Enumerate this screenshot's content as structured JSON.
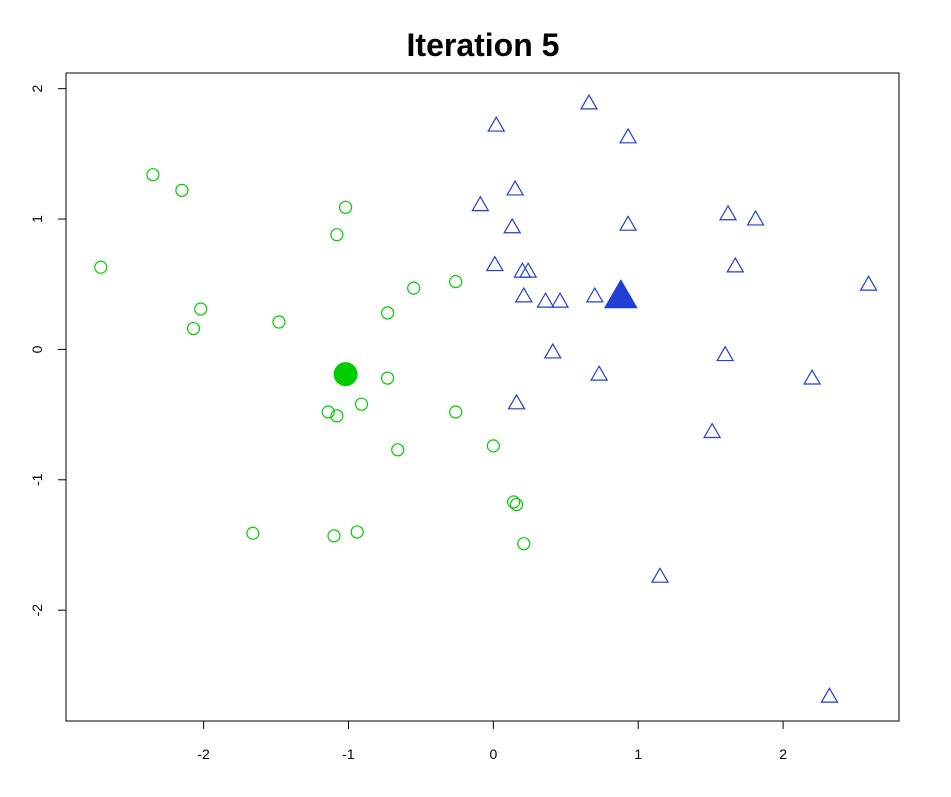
{
  "chart_data": {
    "type": "scatter",
    "title": "Iteration 5",
    "xlabel": "",
    "ylabel": "",
    "xlim": [
      -2.95,
      2.8
    ],
    "ylim": [
      -2.85,
      2.12
    ],
    "x_ticks": [
      -2,
      -1,
      0,
      1,
      2
    ],
    "y_ticks": [
      -2,
      -1,
      0,
      1,
      2
    ],
    "x_tick_labels": [
      "-2",
      "-1",
      "0",
      "1",
      "2"
    ],
    "y_tick_labels": [
      "-2",
      "-1",
      "0",
      "1",
      "2"
    ],
    "grid": false,
    "series": [
      {
        "marker": "circle-open",
        "color": "#00cc00",
        "points": [
          [
            -2.71,
            0.63
          ],
          [
            -2.35,
            1.34
          ],
          [
            -2.15,
            1.22
          ],
          [
            -2.07,
            0.16
          ],
          [
            -2.02,
            0.31
          ],
          [
            -1.48,
            0.21
          ],
          [
            -1.66,
            -1.41
          ],
          [
            -1.14,
            -0.48
          ],
          [
            -1.1,
            -1.43
          ],
          [
            -1.08,
            0.88
          ],
          [
            -1.08,
            -0.51
          ],
          [
            -1.02,
            1.09
          ],
          [
            -0.94,
            -1.4
          ],
          [
            -0.91,
            -0.42
          ],
          [
            -0.73,
            0.28
          ],
          [
            -0.73,
            -0.22
          ],
          [
            -0.66,
            -0.77
          ],
          [
            -0.55,
            0.47
          ],
          [
            -0.26,
            0.52
          ],
          [
            -0.26,
            -0.48
          ],
          [
            0.0,
            -0.74
          ],
          [
            0.14,
            -1.17
          ],
          [
            0.16,
            -1.19
          ],
          [
            0.21,
            -1.49
          ]
        ]
      },
      {
        "marker": "circle-filled",
        "color": "#00cc00",
        "points": [
          [
            -1.02,
            -0.19
          ]
        ]
      },
      {
        "marker": "triangle-open",
        "color": "#1f3fd6",
        "points": [
          [
            0.66,
            1.88
          ],
          [
            0.02,
            1.71
          ],
          [
            0.93,
            1.62
          ],
          [
            0.15,
            1.22
          ],
          [
            -0.09,
            1.1
          ],
          [
            0.13,
            0.93
          ],
          [
            0.93,
            0.95
          ],
          [
            1.62,
            1.03
          ],
          [
            1.81,
            0.99
          ],
          [
            0.01,
            0.64
          ],
          [
            0.2,
            0.59
          ],
          [
            0.24,
            0.59
          ],
          [
            1.67,
            0.63
          ],
          [
            2.59,
            0.49
          ],
          [
            0.21,
            0.4
          ],
          [
            0.36,
            0.36
          ],
          [
            0.46,
            0.36
          ],
          [
            0.7,
            0.4
          ],
          [
            0.41,
            -0.03
          ],
          [
            1.6,
            -0.05
          ],
          [
            0.73,
            -0.2
          ],
          [
            2.2,
            -0.23
          ],
          [
            0.16,
            -0.42
          ],
          [
            1.51,
            -0.64
          ],
          [
            1.15,
            -1.75
          ],
          [
            2.32,
            -2.67
          ]
        ]
      },
      {
        "marker": "triangle-filled",
        "color": "#1f3fd6",
        "points": [
          [
            0.88,
            0.39
          ]
        ]
      }
    ]
  }
}
